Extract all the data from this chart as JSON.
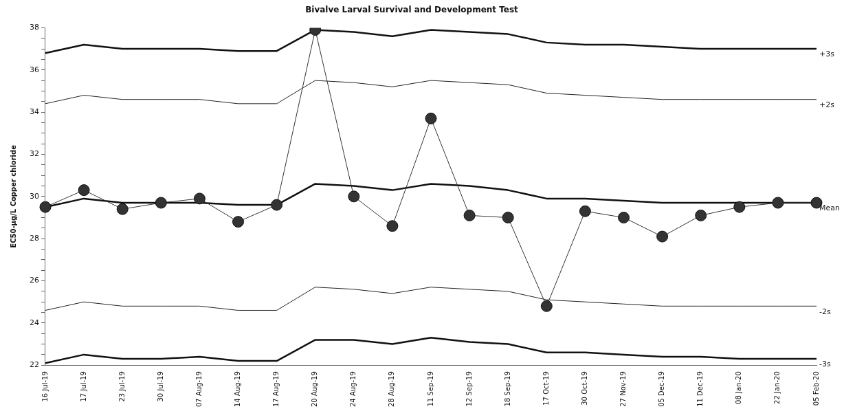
{
  "chart_data": {
    "type": "line",
    "title": "Bivalve Larval Survival and Development Test",
    "ylabel": "EC50-µg/L Copper chloride",
    "categories": [
      "16 Jul-19",
      "17 Jul-19",
      "23 Jul-19",
      "30 Jul-19",
      "07 Aug-19",
      "14 Aug-19",
      "17 Aug-19",
      "20 Aug-19",
      "24 Aug-19",
      "28 Aug-19",
      "11 Sep-19",
      "12 Sep-19",
      "18 Sep-19",
      "17 Oct-19",
      "30 Oct-19",
      "27 Nov-19",
      "05 Dec-19",
      "11 Dec-19",
      "08 Jan-20",
      "22 Jan-20",
      "05 Feb-20"
    ],
    "series": [
      {
        "color": "#333333",
        "marker": "circle",
        "values": [
          29.5,
          30.3,
          29.4,
          29.7,
          29.9,
          28.8,
          29.6,
          37.9,
          30.0,
          28.6,
          33.7,
          29.1,
          29.0,
          24.8,
          29.3,
          29.0,
          28.1,
          29.1,
          29.5,
          29.7,
          29.7
        ]
      },
      {
        "name": "+3s",
        "color": "#111111",
        "marker": "none",
        "values": [
          36.8,
          37.2,
          37.0,
          37.0,
          37.0,
          36.9,
          36.9,
          37.9,
          37.8,
          37.6,
          37.9,
          37.8,
          37.7,
          37.3,
          37.2,
          37.2,
          37.1,
          37.0,
          37.0,
          37.0,
          37.0
        ]
      },
      {
        "name": "+2s",
        "color": "#222222",
        "marker": "none",
        "values": [
          34.4,
          34.8,
          34.6,
          34.6,
          34.6,
          34.4,
          34.4,
          35.5,
          35.4,
          35.2,
          35.5,
          35.4,
          35.3,
          34.9,
          34.8,
          34.7,
          34.6,
          34.6,
          34.6,
          34.6,
          34.6
        ]
      },
      {
        "name": "Mean",
        "color": "#111111",
        "marker": "none",
        "values": [
          29.5,
          29.9,
          29.7,
          29.7,
          29.7,
          29.6,
          29.6,
          30.6,
          30.5,
          30.3,
          30.6,
          30.5,
          30.3,
          29.9,
          29.9,
          29.8,
          29.7,
          29.7,
          29.7,
          29.7,
          29.7
        ]
      },
      {
        "name": "-2s",
        "color": "#222222",
        "marker": "none",
        "values": [
          24.6,
          25.0,
          24.8,
          24.8,
          24.8,
          24.6,
          24.6,
          25.7,
          25.6,
          25.4,
          25.7,
          25.6,
          25.5,
          25.1,
          25.0,
          24.9,
          24.8,
          24.8,
          24.8,
          24.8,
          24.8
        ]
      },
      {
        "name": "-3s",
        "color": "#111111",
        "marker": "none",
        "values": [
          22.1,
          22.5,
          22.3,
          22.3,
          22.4,
          22.2,
          22.2,
          23.2,
          23.2,
          23.0,
          23.3,
          23.1,
          23.0,
          22.6,
          22.6,
          22.5,
          22.4,
          22.4,
          22.3,
          22.3,
          22.3
        ]
      }
    ],
    "ylim": [
      22,
      38
    ],
    "yticks": [
      22,
      {
        "value": 22.5,
        "label": null
      },
      {
        "value": 23,
        "label": null
      },
      {
        "value": 23.5,
        "label": null
      },
      24,
      {
        "value": 24.5,
        "label": null
      },
      {
        "value": 25,
        "label": null
      },
      {
        "value": 25.5,
        "label": null
      },
      26,
      {
        "value": 26.5,
        "label": null
      },
      {
        "value": 27,
        "label": null
      },
      {
        "value": 27.5,
        "label": null
      },
      28,
      {
        "value": 28.5,
        "label": null
      },
      {
        "value": 29,
        "label": null
      },
      {
        "value": 29.5,
        "label": null
      },
      30,
      {
        "value": 30.5,
        "label": null
      },
      {
        "value": 31,
        "label": null
      },
      {
        "value": 31.5,
        "label": null
      },
      32,
      {
        "value": 32.5,
        "label": null
      },
      {
        "value": 33,
        "label": null
      },
      {
        "value": 33.5,
        "label": null
      },
      34,
      {
        "value": 34.5,
        "label": null
      },
      {
        "value": 35,
        "label": null
      },
      {
        "value": 35.5,
        "label": null
      },
      36,
      {
        "value": 36.5,
        "label": null
      },
      {
        "value": 37,
        "label": null
      },
      {
        "value": 37.5,
        "label": null
      },
      38
    ],
    "grid": false,
    "legend": false
  }
}
